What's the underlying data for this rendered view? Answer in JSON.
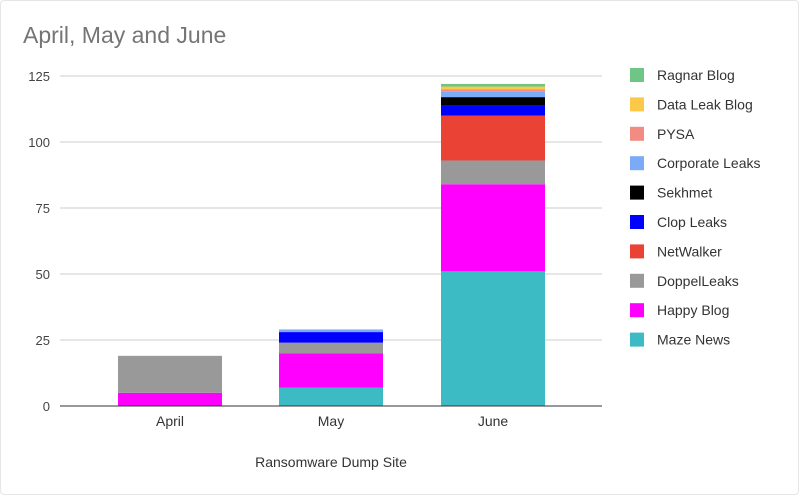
{
  "chart_data": {
    "type": "bar",
    "stacked": true,
    "title": "April, May and June",
    "xlabel": "Ransomware Dump Site",
    "ylabel": "",
    "ylim": [
      0,
      125
    ],
    "yticks": [
      0,
      25,
      50,
      75,
      100,
      125
    ],
    "grid": true,
    "legend_position": "right",
    "categories": [
      "April",
      "May",
      "June"
    ],
    "series": [
      {
        "name": "Maze News",
        "color": "#3dbbc4",
        "values": [
          0,
          7,
          51
        ]
      },
      {
        "name": "Happy Blog",
        "color": "#ff00ff",
        "values": [
          5,
          13,
          33
        ]
      },
      {
        "name": "DoppelLeaks",
        "color": "#999999",
        "values": [
          14,
          4,
          9
        ]
      },
      {
        "name": "NetWalker",
        "color": "#ea4335",
        "values": [
          0,
          0,
          17
        ]
      },
      {
        "name": "Clop Leaks",
        "color": "#0000ff",
        "values": [
          0,
          4,
          4
        ]
      },
      {
        "name": "Sekhmet",
        "color": "#000000",
        "values": [
          0,
          0,
          3
        ]
      },
      {
        "name": "Corporate Leaks",
        "color": "#7baaf7",
        "values": [
          0,
          1,
          2
        ]
      },
      {
        "name": "PYSA",
        "color": "#f28b82",
        "values": [
          0,
          0,
          1
        ]
      },
      {
        "name": "Data Leak Blog",
        "color": "#fbc947",
        "values": [
          0,
          0,
          1
        ]
      },
      {
        "name": "Ragnar Blog",
        "color": "#6fc586",
        "values": [
          0,
          0,
          1
        ]
      }
    ]
  }
}
